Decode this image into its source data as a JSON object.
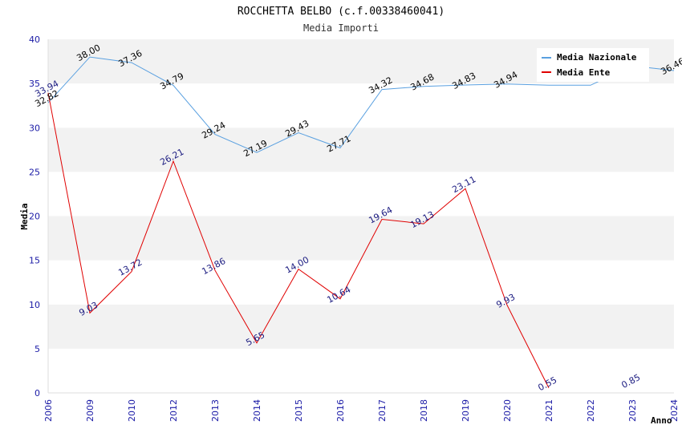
{
  "chart_data": {
    "type": "line",
    "title": "ROCCHETTA BELBO (c.f.00338460041)",
    "subtitle": "Media Importi",
    "ylabel": "Media",
    "xlabel": "Anno",
    "categories": [
      "2006",
      "2009",
      "2010",
      "2012",
      "2013",
      "2014",
      "2015",
      "2016",
      "2017",
      "2018",
      "2019",
      "2020",
      "2021",
      "2022",
      "2023",
      "2024"
    ],
    "ylim": [
      0,
      40
    ],
    "yticks": [
      0,
      5,
      10,
      15,
      20,
      25,
      30,
      35,
      40
    ],
    "grid": true,
    "legend_position": "top-right",
    "series": [
      {
        "name": "Media Nazionale",
        "color": "#5aa0e0",
        "values": [
          32.82,
          38.0,
          37.36,
          34.79,
          29.24,
          27.19,
          29.43,
          27.71,
          34.32,
          34.68,
          34.83,
          34.94,
          34.8,
          34.8,
          37.0,
          36.46
        ],
        "labels": [
          "32.82",
          "38.00",
          "37.36",
          "34.79",
          "29.24",
          "27.19",
          "29.43",
          "27.71",
          "34.32",
          "34.68",
          "34.83",
          "34.94",
          "",
          "",
          "",
          "36.46"
        ]
      },
      {
        "name": "Media Ente",
        "color": "#e00000",
        "values": [
          33.94,
          9.03,
          13.72,
          26.21,
          13.86,
          5.65,
          14.0,
          10.64,
          19.64,
          19.13,
          23.11,
          9.93,
          0.55,
          null,
          0.85,
          null
        ],
        "labels": [
          "33.94",
          "9.03",
          "13.72",
          "26.21",
          "13.86",
          "5.65",
          "14.00",
          "10.64",
          "19.64",
          "19.13",
          "23.11",
          "9.93",
          "0.55",
          "",
          "0.85",
          ""
        ]
      }
    ]
  }
}
